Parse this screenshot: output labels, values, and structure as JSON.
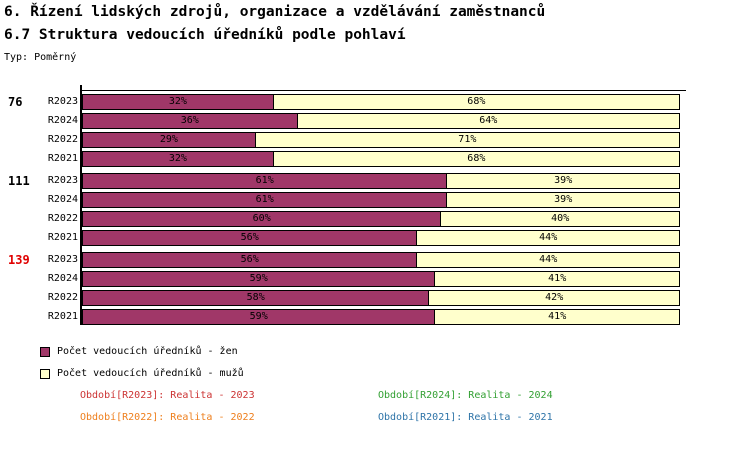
{
  "header": {
    "title": "6. Řízení lidských zdrojů, organizace a vzdělávání zaměstnanců",
    "subtitle": "6.7 Struktura vedoucích úředníků podle pohlaví",
    "type_label": "Typ: Poměrný"
  },
  "chart_data": {
    "type": "bar",
    "subtype": "horizontal-stacked-100percent",
    "title": "6.7 Struktura vedoucích úředníků podle pohlaví",
    "xlim": [
      0,
      100
    ],
    "grid": false,
    "legend_position": "bottom-left",
    "value_label_format": "{value}%",
    "series": [
      {
        "name": "Počet vedoucích úředníků - žen",
        "color": "#a03768"
      },
      {
        "name": "Počet vedoucích úředníků - mužů",
        "color": "#ffffcc"
      }
    ],
    "groups": [
      {
        "label": "76",
        "label_color": "#000000",
        "rows": [
          {
            "category": "R2023",
            "women_pct": 32,
            "men_pct": 68
          },
          {
            "category": "R2024",
            "women_pct": 36,
            "men_pct": 64
          },
          {
            "category": "R2022",
            "women_pct": 29,
            "men_pct": 71
          },
          {
            "category": "R2021",
            "women_pct": 32,
            "men_pct": 68
          }
        ]
      },
      {
        "label": "111",
        "label_color": "#000000",
        "rows": [
          {
            "category": "R2023",
            "women_pct": 61,
            "men_pct": 39
          },
          {
            "category": "R2024",
            "women_pct": 61,
            "men_pct": 39
          },
          {
            "category": "R2022",
            "women_pct": 60,
            "men_pct": 40
          },
          {
            "category": "R2021",
            "women_pct": 56,
            "men_pct": 44
          }
        ]
      },
      {
        "label": "139",
        "label_color": "#e00000",
        "rows": [
          {
            "category": "R2023",
            "women_pct": 56,
            "men_pct": 44
          },
          {
            "category": "R2024",
            "women_pct": 59,
            "men_pct": 41
          },
          {
            "category": "R2022",
            "women_pct": 58,
            "men_pct": 42
          },
          {
            "category": "R2021",
            "women_pct": 59,
            "men_pct": 41
          }
        ]
      }
    ]
  },
  "legend": {
    "items": [
      {
        "label": "Počet vedoucích úředníků - žen",
        "color": "#a03768"
      },
      {
        "label": "Počet vedoucích úředníků - mužů",
        "color": "#ffffcc"
      }
    ]
  },
  "period_legend": [
    {
      "label": "Období[R2023]: Realita - 2023",
      "color": "#cc3333"
    },
    {
      "label": "Období[R2024]: Realita - 2024",
      "color": "#33a033"
    },
    {
      "label": "Období[R2022]: Realita - 2022",
      "color": "#ee7f1d"
    },
    {
      "label": "Období[R2021]: Realita - 2021",
      "color": "#2e74a8"
    }
  ]
}
